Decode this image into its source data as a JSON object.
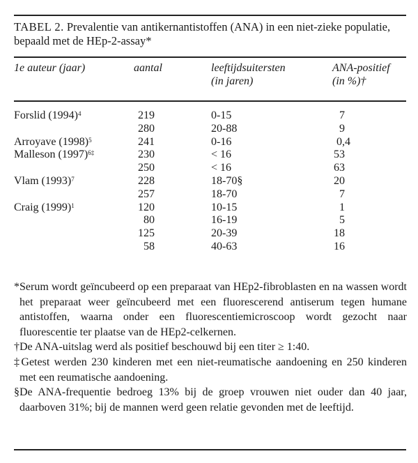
{
  "table": {
    "label": "TABEL 2.",
    "caption": " Prevalentie van antikernantistoffen (ANA) in een niet-zieke populatie, bepaald met de HEp-2-assay*",
    "headers": [
      {
        "line1": "1e auteur (jaar)",
        "line2": ""
      },
      {
        "line1": "aantal",
        "line2": ""
      },
      {
        "line1": "leeftijdsuitersten",
        "line2": "(in jaren)"
      },
      {
        "line1": "ANA-positief",
        "line2": "(in %)†"
      }
    ],
    "rows": [
      {
        "author": "Forslid (1994)",
        "ref": "4",
        "n": "219",
        "age": "0-15",
        "ana": "7"
      },
      {
        "author": "",
        "ref": "",
        "n": "280",
        "age": "20-88",
        "ana": "9"
      },
      {
        "author": "Arroyave (1998)",
        "ref": "5",
        "n": "241",
        "age": "0-16",
        "ana": "0,4"
      },
      {
        "author": "Malleson (1997)",
        "ref": "6‡",
        "n": "230",
        "age": "< 16",
        "ana": "53"
      },
      {
        "author": "",
        "ref": "",
        "n": "250",
        "age": "< 16",
        "ana": "63"
      },
      {
        "author": "Vlam (1993)",
        "ref": "7",
        "n": "228",
        "age": "18-70§",
        "ana": "20"
      },
      {
        "author": "",
        "ref": "",
        "n": "257",
        "age": "18-70",
        "ana": "7"
      },
      {
        "author": "Craig (1999)",
        "ref": "1",
        "n": "120",
        "age": "10-15",
        "ana": "1"
      },
      {
        "author": "",
        "ref": "",
        "n": "80",
        "age": "16-19",
        "ana": "5"
      },
      {
        "author": "",
        "ref": "",
        "n": "125",
        "age": "20-39",
        "ana": "18"
      },
      {
        "author": "",
        "ref": "",
        "n": "58",
        "age": "40-63",
        "ana": "16"
      }
    ]
  },
  "footnotes": [
    "*Serum wordt geïncubeerd op een preparaat van HEp2-fibroblasten en na wassen wordt het preparaat weer geïncubeerd met een fluorescerend antiserum tegen humane antistoffen, waarna onder een fluorescentiemicroscoop wordt gezocht naar fluorescentie ter plaatse van de HEp2-celkernen.",
    "†De ANA-uitslag werd als positief beschouwd bij een titer ≥ 1:40.",
    "‡Getest werden 230 kinderen met een niet-reumatische aandoening en 250 kinderen met een reumatische aandoening.",
    "§De ANA-frequentie bedroeg 13% bij de groep vrouwen niet ouder dan 40 jaar, daarboven 31%; bij de mannen werd geen relatie gevonden met de leeftijd."
  ]
}
